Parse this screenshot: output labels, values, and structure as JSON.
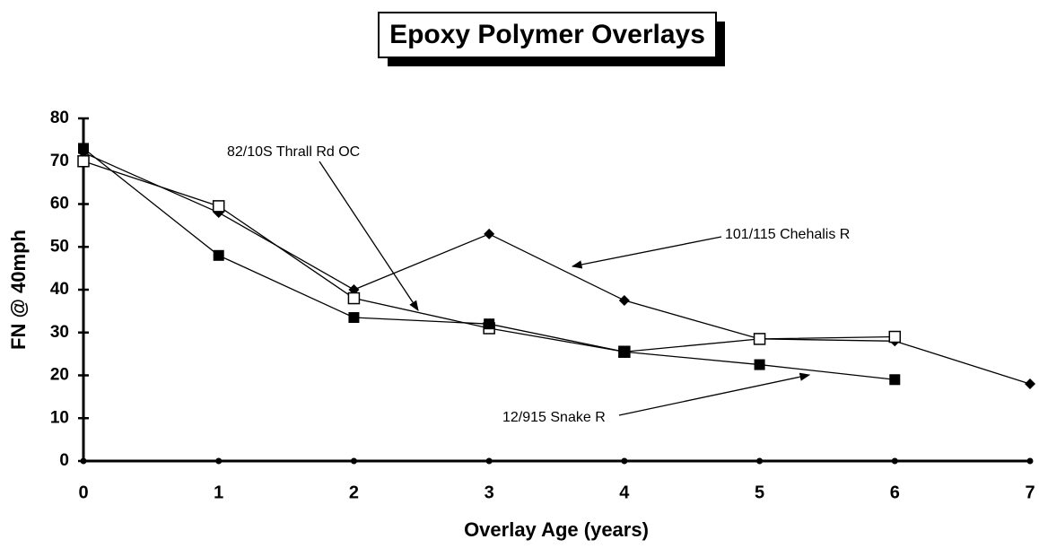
{
  "chart_data": {
    "type": "line",
    "title": "Epoxy Polymer Overlays",
    "x_label": "Overlay Age (years)",
    "y_label": "FN @ 40mph",
    "x": [
      0,
      1,
      2,
      3,
      4,
      5,
      6,
      7
    ],
    "xlim": [
      0,
      7
    ],
    "xticks": [
      0,
      1,
      2,
      3,
      4,
      5,
      6,
      7
    ],
    "ylim": [
      0,
      80
    ],
    "yticks": [
      0,
      10,
      20,
      30,
      40,
      50,
      60,
      70,
      80
    ],
    "series": [
      {
        "name": "101/115 Chehalis R",
        "color": "#000000",
        "marker": "diamond",
        "values": [
          72,
          58,
          40,
          53,
          37.5,
          28.5,
          28,
          18
        ]
      },
      {
        "name": "82/10S Thrall Rd OC",
        "color": "#000000",
        "marker": "open-square",
        "values": [
          70,
          59.5,
          38,
          31,
          25.5,
          28.5,
          29,
          null
        ]
      },
      {
        "name": "12/915 Snake R",
        "color": "#000000",
        "marker": "filled-square",
        "values": [
          73,
          48,
          33.5,
          32,
          25.5,
          22.5,
          19,
          null
        ]
      }
    ]
  }
}
